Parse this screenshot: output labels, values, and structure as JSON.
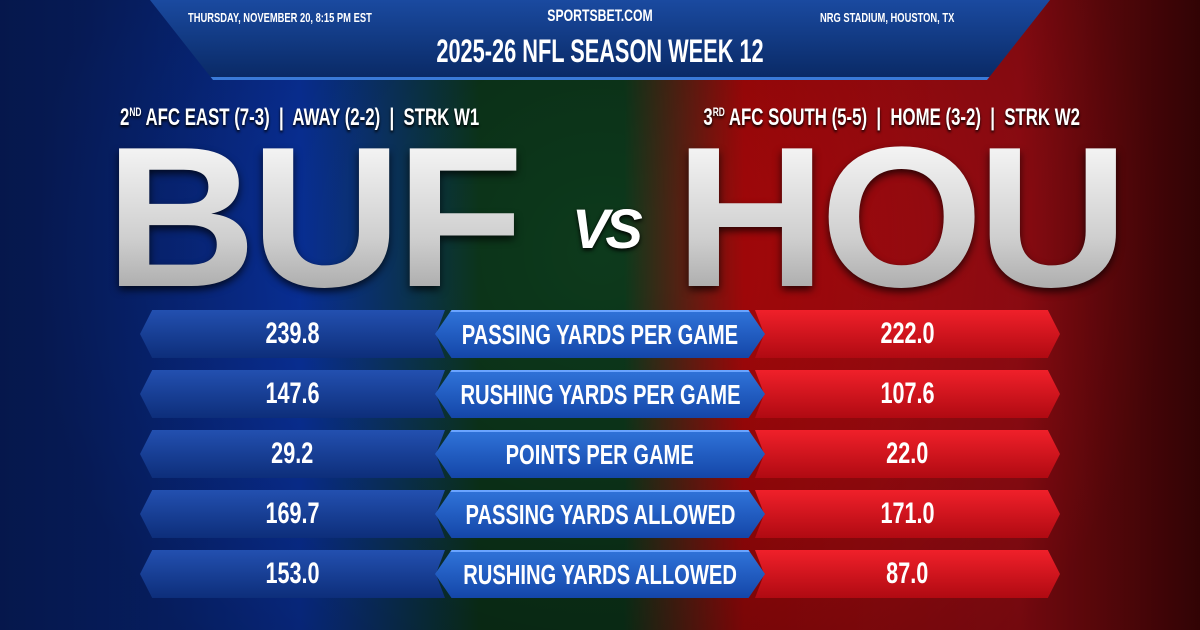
{
  "header": {
    "site": "SPORTSBET.COM",
    "date": "THURSDAY, NOVEMBER 20, 8:15 PM EST",
    "venue": "NRG STADIUM, HOUSTON, TX",
    "title": "2025-26 NFL SEASON WEEK 12"
  },
  "away": {
    "abbr": "BUF",
    "rank": "2",
    "rank_suffix": "ND",
    "record": " AFC EAST (7-3)  |  AWAY (2-2)  |  STRK W1",
    "color": "#0b3cc0"
  },
  "home": {
    "abbr": "HOU",
    "rank": "3",
    "rank_suffix": "RD",
    "record": " AFC SOUTH (5-5)  |  HOME (3-2)  |  STRK W2",
    "color": "#d0101a"
  },
  "vs": "VS",
  "stats": [
    {
      "label": "PASSING YARDS PER GAME",
      "away": "239.8",
      "home": "222.0"
    },
    {
      "label": "RUSHING YARDS PER GAME",
      "away": "147.6",
      "home": "107.6"
    },
    {
      "label": "POINTS PER GAME",
      "away": "29.2",
      "home": "22.0"
    },
    {
      "label": "PASSING YARDS ALLOWED",
      "away": "169.7",
      "home": "171.0"
    },
    {
      "label": "RUSHING YARDS ALLOWED",
      "away": "153.0",
      "home": "87.0"
    }
  ]
}
